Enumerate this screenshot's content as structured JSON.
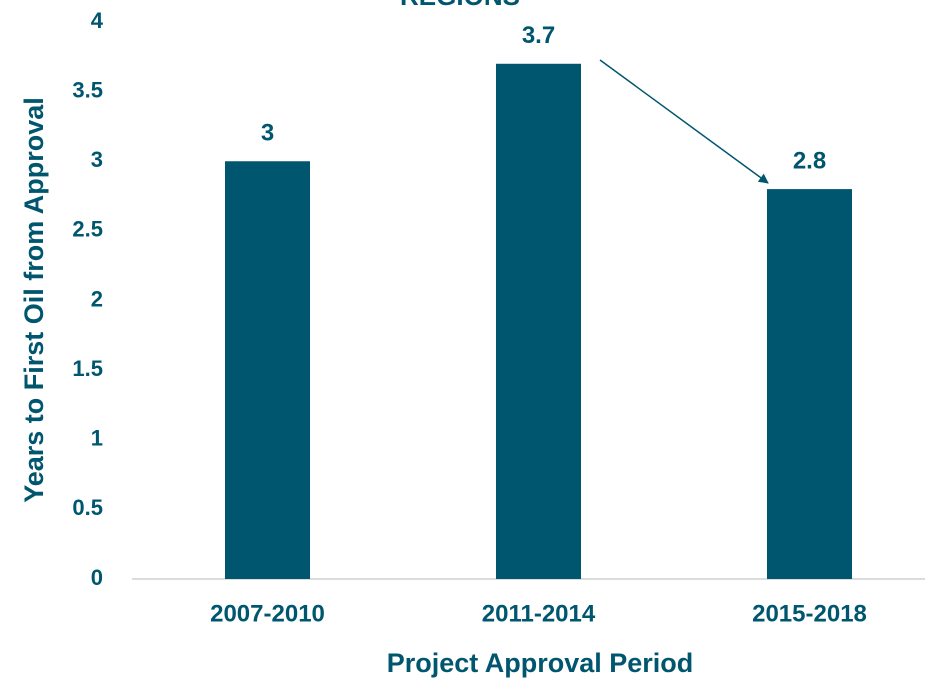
{
  "chart_data": {
    "type": "bar",
    "title": "REGIONS",
    "x_label": "Project Approval Period",
    "y_label": "Years to First Oil from Approval",
    "categories": [
      "2007-2010",
      "2011-2014",
      "2015-2018"
    ],
    "values": [
      3,
      3.7,
      2.8
    ],
    "color": "#00566e",
    "ylim": [
      0,
      4
    ],
    "yticks": [
      0,
      0.5,
      1,
      1.5,
      2,
      2.5,
      3,
      3.5,
      4
    ],
    "grid": false
  }
}
